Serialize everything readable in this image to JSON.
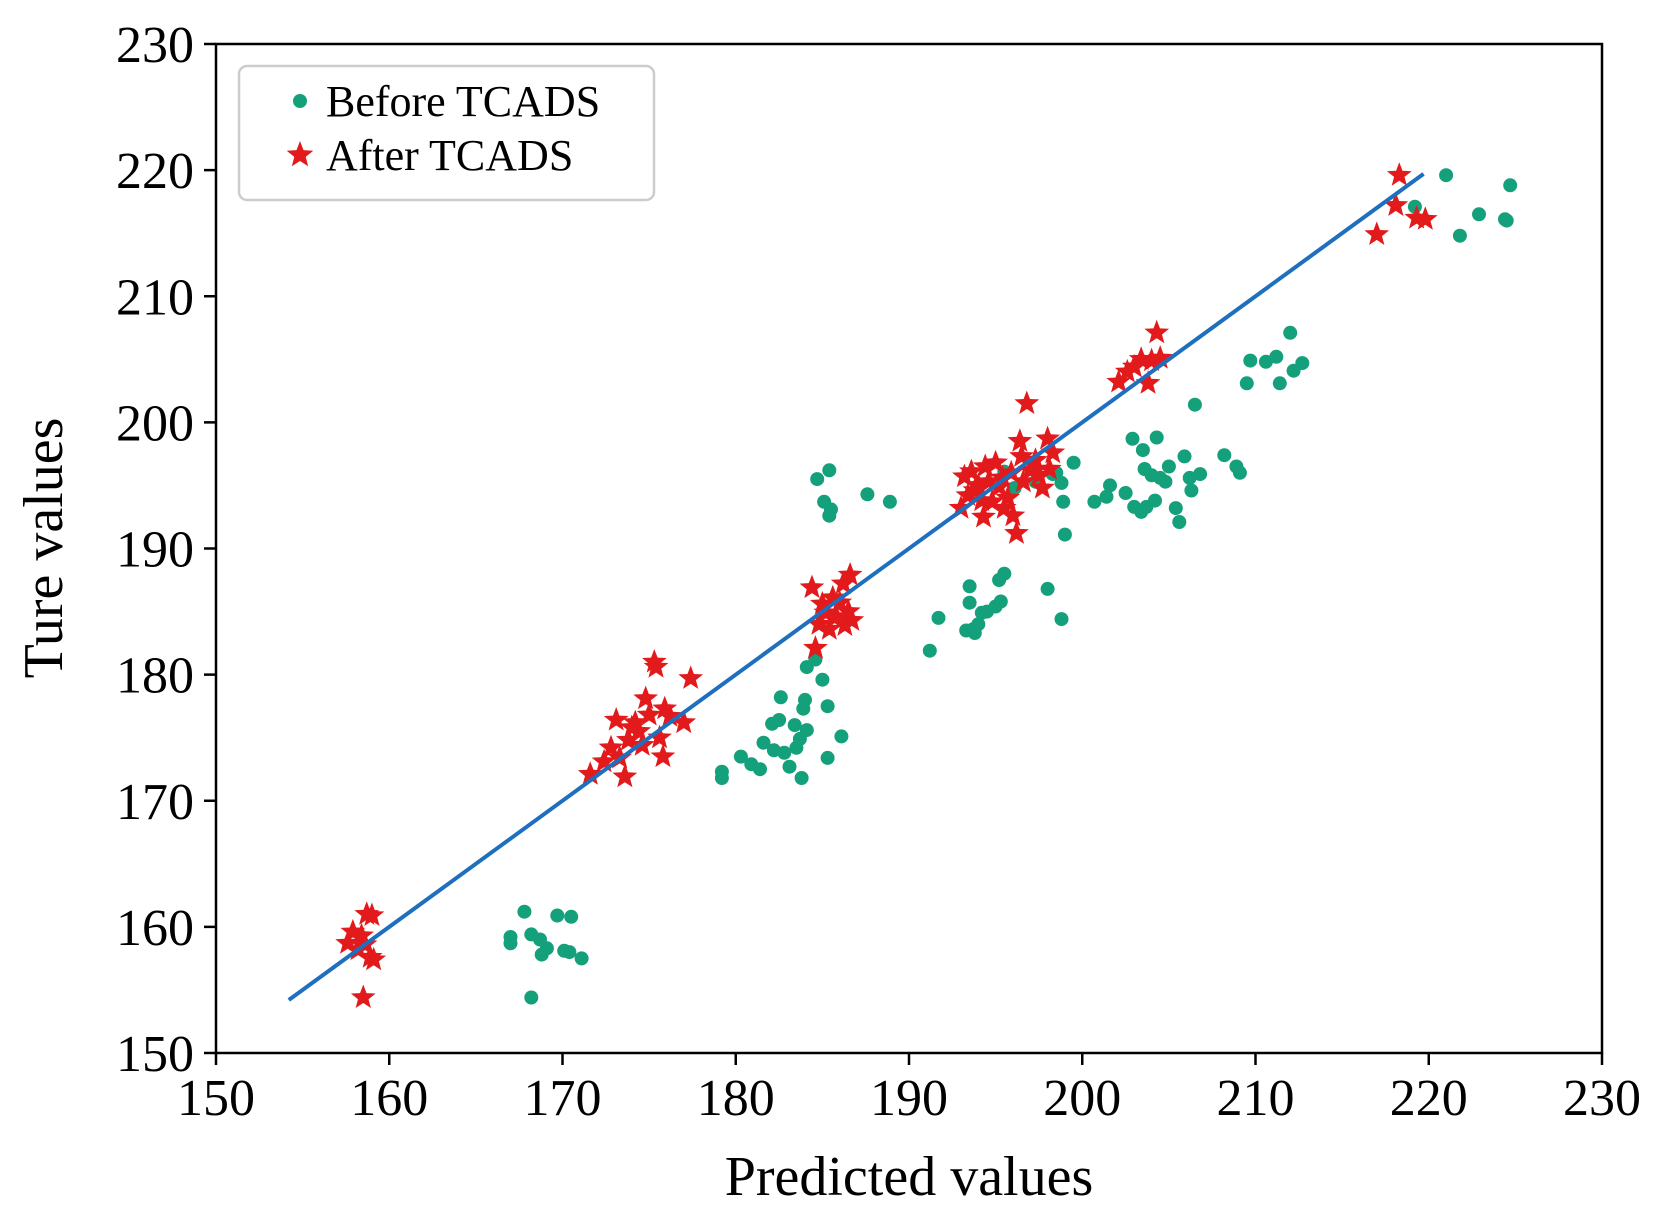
{
  "chart_data": {
    "type": "scatter",
    "title": "",
    "xlabel": "Predicted values",
    "ylabel": "Ture values",
    "xlim": [
      150,
      230
    ],
    "ylim": [
      150,
      230
    ],
    "x_ticks": [
      150,
      160,
      170,
      180,
      190,
      200,
      210,
      220,
      230
    ],
    "y_ticks": [
      150,
      160,
      170,
      180,
      190,
      200,
      210,
      220,
      230
    ],
    "grid": false,
    "legend_position": "top-left",
    "reference_line": {
      "x": [
        154.2,
        219.7
      ],
      "y": [
        154.2,
        219.7
      ],
      "color": "#1f6fbf"
    },
    "series": [
      {
        "name": "Before TCADS",
        "marker": "circle",
        "color": "#14a07a",
        "points": [
          [
            167,
            159.2
          ],
          [
            167,
            158.7
          ],
          [
            167.8,
            161.2
          ],
          [
            168.2,
            159.4
          ],
          [
            168.2,
            154.4
          ],
          [
            168.7,
            159.0
          ],
          [
            168.8,
            157.8
          ],
          [
            169.1,
            158.3
          ],
          [
            169.7,
            160.9
          ],
          [
            170.1,
            158.1
          ],
          [
            170.4,
            158.0
          ],
          [
            170.5,
            160.8
          ],
          [
            171.1,
            157.5
          ],
          [
            179.2,
            172.3
          ],
          [
            179.2,
            171.8
          ],
          [
            180.3,
            173.5
          ],
          [
            180.9,
            172.9
          ],
          [
            181.4,
            172.5
          ],
          [
            181.6,
            174.6
          ],
          [
            182.1,
            176.1
          ],
          [
            182.2,
            174.0
          ],
          [
            182.5,
            176.4
          ],
          [
            182.6,
            178.2
          ],
          [
            182.8,
            173.8
          ],
          [
            183.1,
            172.7
          ],
          [
            183.4,
            176.0
          ],
          [
            183.5,
            174.2
          ],
          [
            183.7,
            174.9
          ],
          [
            183.8,
            171.8
          ],
          [
            183.9,
            177.3
          ],
          [
            184.0,
            178.0
          ],
          [
            184.1,
            175.6
          ],
          [
            184.1,
            180.6
          ],
          [
            184.6,
            181.2
          ],
          [
            184.7,
            195.5
          ],
          [
            185.0,
            179.6
          ],
          [
            185.1,
            193.7
          ],
          [
            185.3,
            177.5
          ],
          [
            185.3,
            173.4
          ],
          [
            185.4,
            196.2
          ],
          [
            185.4,
            192.6
          ],
          [
            185.5,
            193.1
          ],
          [
            186.1,
            175.1
          ],
          [
            187.6,
            194.3
          ],
          [
            188.9,
            193.7
          ],
          [
            191.2,
            181.9
          ],
          [
            191.7,
            184.5
          ],
          [
            193.3,
            183.5
          ],
          [
            193.5,
            185.7
          ],
          [
            193.5,
            187.0
          ],
          [
            193.7,
            183.6
          ],
          [
            193.8,
            183.3
          ],
          [
            194.0,
            184.0
          ],
          [
            194.2,
            184.9
          ],
          [
            194.5,
            185.0
          ],
          [
            195.0,
            185.4
          ],
          [
            195.2,
            187.5
          ],
          [
            195.3,
            185.8
          ],
          [
            195.5,
            188.0
          ],
          [
            195.5,
            196.1
          ],
          [
            196.1,
            194.8
          ],
          [
            197.3,
            195.3
          ],
          [
            198.0,
            186.8
          ],
          [
            198.3,
            195.9
          ],
          [
            198.5,
            196.0
          ],
          [
            198.8,
            184.4
          ],
          [
            198.8,
            195.2
          ],
          [
            198.9,
            193.7
          ],
          [
            199.0,
            191.1
          ],
          [
            199.5,
            196.8
          ],
          [
            200.7,
            193.7
          ],
          [
            201.4,
            194.1
          ],
          [
            201.6,
            195.0
          ],
          [
            202.5,
            194.4
          ],
          [
            202.9,
            198.7
          ],
          [
            203.0,
            193.3
          ],
          [
            203.4,
            192.9
          ],
          [
            203.5,
            197.8
          ],
          [
            203.6,
            196.3
          ],
          [
            203.7,
            193.3
          ],
          [
            204.0,
            195.8
          ],
          [
            204.2,
            193.8
          ],
          [
            204.3,
            198.8
          ],
          [
            204.5,
            195.6
          ],
          [
            204.8,
            195.3
          ],
          [
            205.0,
            196.5
          ],
          [
            205.4,
            193.2
          ],
          [
            205.6,
            192.1
          ],
          [
            205.9,
            197.3
          ],
          [
            206.2,
            195.6
          ],
          [
            206.3,
            194.6
          ],
          [
            206.5,
            201.4
          ],
          [
            206.8,
            195.9
          ],
          [
            208.2,
            197.4
          ],
          [
            208.9,
            196.5
          ],
          [
            209.1,
            196.0
          ],
          [
            209.5,
            203.1
          ],
          [
            209.7,
            204.9
          ],
          [
            210.6,
            204.8
          ],
          [
            211.2,
            205.2
          ],
          [
            211.4,
            203.1
          ],
          [
            212.0,
            207.1
          ],
          [
            212.2,
            204.1
          ],
          [
            212.7,
            204.7
          ],
          [
            219.2,
            217.1
          ],
          [
            221.0,
            219.6
          ],
          [
            221.8,
            214.8
          ],
          [
            222.9,
            216.5
          ],
          [
            224.4,
            216.1
          ],
          [
            224.5,
            216.0
          ],
          [
            224.7,
            218.8
          ]
        ]
      },
      {
        "name": "After TCADS",
        "marker": "star",
        "color": "#e31a1c",
        "points": [
          [
            157.6,
            158.7
          ],
          [
            157.9,
            159.6
          ],
          [
            158.2,
            158.2
          ],
          [
            158.4,
            159.3
          ],
          [
            158.5,
            154.4
          ],
          [
            158.6,
            158.6
          ],
          [
            158.7,
            161.0
          ],
          [
            158.9,
            157.6
          ],
          [
            159.0,
            160.9
          ],
          [
            159.1,
            157.4
          ],
          [
            171.6,
            172.1
          ],
          [
            172.4,
            173.1
          ],
          [
            172.8,
            174.2
          ],
          [
            173.1,
            176.4
          ],
          [
            173.3,
            173.4
          ],
          [
            173.6,
            171.9
          ],
          [
            173.8,
            174.8
          ],
          [
            174.0,
            175.8
          ],
          [
            174.2,
            176.2
          ],
          [
            174.4,
            175.5
          ],
          [
            174.6,
            174.4
          ],
          [
            174.8,
            178.1
          ],
          [
            175.0,
            176.8
          ],
          [
            175.3,
            181.0
          ],
          [
            175.4,
            180.6
          ],
          [
            175.6,
            175.0
          ],
          [
            175.8,
            173.5
          ],
          [
            175.9,
            177.3
          ],
          [
            176.2,
            176.7
          ],
          [
            177.0,
            176.2
          ],
          [
            177.4,
            179.7
          ],
          [
            184.4,
            186.9
          ],
          [
            184.6,
            182.1
          ],
          [
            184.8,
            184.0
          ],
          [
            185.0,
            185.6
          ],
          [
            185.2,
            184.9
          ],
          [
            185.4,
            183.6
          ],
          [
            185.6,
            186.1
          ],
          [
            185.8,
            184.6
          ],
          [
            186.0,
            185.7
          ],
          [
            186.2,
            187.2
          ],
          [
            186.3,
            183.9
          ],
          [
            186.5,
            185.0
          ],
          [
            186.6,
            187.9
          ],
          [
            186.7,
            184.3
          ],
          [
            193.0,
            193.2
          ],
          [
            193.2,
            195.7
          ],
          [
            193.4,
            194.2
          ],
          [
            193.6,
            196.1
          ],
          [
            193.8,
            194.6
          ],
          [
            194.0,
            195.0
          ],
          [
            194.2,
            193.8
          ],
          [
            194.3,
            192.5
          ],
          [
            194.4,
            196.5
          ],
          [
            194.6,
            195.3
          ],
          [
            194.8,
            193.7
          ],
          [
            195.0,
            196.8
          ],
          [
            195.2,
            194.9
          ],
          [
            195.4,
            195.6
          ],
          [
            195.5,
            193.2
          ],
          [
            195.7,
            194.0
          ],
          [
            195.9,
            196.0
          ],
          [
            196.0,
            192.6
          ],
          [
            196.2,
            191.2
          ],
          [
            196.4,
            198.5
          ],
          [
            196.5,
            197.3
          ],
          [
            196.6,
            195.3
          ],
          [
            196.8,
            201.5
          ],
          [
            197.0,
            196.2
          ],
          [
            197.3,
            197.0
          ],
          [
            197.5,
            195.8
          ],
          [
            197.7,
            194.8
          ],
          [
            198.0,
            198.7
          ],
          [
            198.1,
            196.3
          ],
          [
            198.3,
            197.6
          ],
          [
            202.1,
            203.2
          ],
          [
            202.6,
            204.0
          ],
          [
            203.0,
            204.4
          ],
          [
            203.4,
            205.0
          ],
          [
            203.8,
            203.1
          ],
          [
            204.0,
            204.9
          ],
          [
            204.3,
            207.1
          ],
          [
            204.5,
            205.1
          ],
          [
            217.0,
            214.9
          ],
          [
            218.1,
            217.2
          ],
          [
            218.3,
            219.6
          ],
          [
            219.3,
            216.2
          ],
          [
            219.8,
            216.1
          ]
        ]
      }
    ]
  }
}
